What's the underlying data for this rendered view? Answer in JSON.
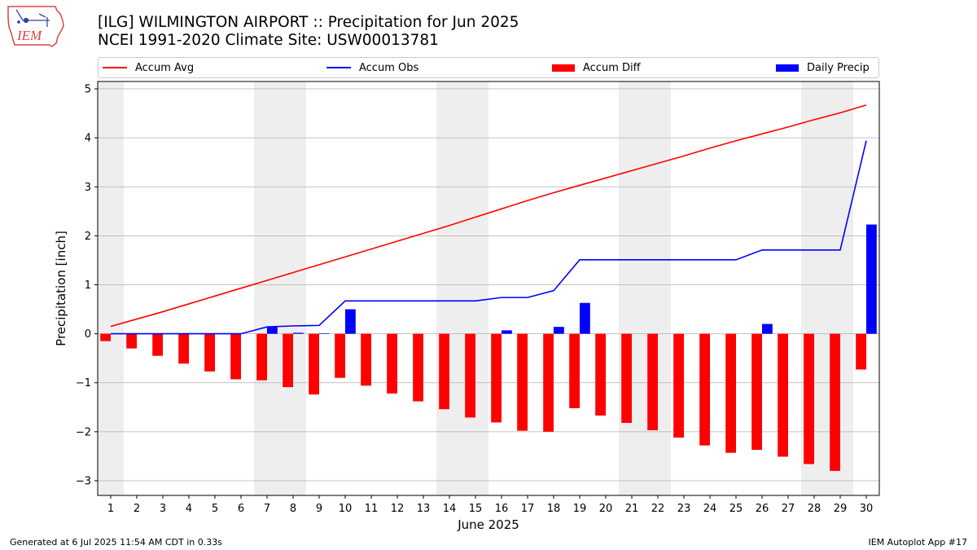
{
  "header": {
    "title_line1": "[ILG] WILMINGTON AIRPORT :: Precipitation for Jun 2025",
    "title_line2": "NCEI 1991-2020 Climate Site: USW00013781"
  },
  "logo": {
    "text": "IEM"
  },
  "footer": {
    "generated": "Generated at 6 Jul 2025 11:54 AM CDT in 0.33s",
    "app": "IEM Autoplot App #17"
  },
  "colors": {
    "accum_avg": "#ff0000",
    "accum_obs": "#0000ff",
    "accum_diff": "#ff0000",
    "daily_precip": "#0000ff",
    "weekend_shade": "#eeeeee",
    "grid": "#b0b0b0"
  },
  "chart_data": {
    "type": "bar",
    "xlabel": "June 2025",
    "ylabel": "Precipitation [inch]",
    "xlim": [
      0.5,
      30.5
    ],
    "ylim": [
      -3.3,
      5.15
    ],
    "yticks": [
      -3,
      -2,
      -1,
      0,
      1,
      2,
      3,
      4,
      5
    ],
    "ytick_labels": [
      "−3",
      "−2",
      "−1",
      "0",
      "1",
      "2",
      "3",
      "4",
      "5"
    ],
    "grid": "horizontal",
    "legend_position": "top",
    "weekend_days": [
      1,
      7,
      8,
      14,
      15,
      21,
      22,
      28,
      29
    ],
    "days": [
      1,
      2,
      3,
      4,
      5,
      6,
      7,
      8,
      9,
      10,
      11,
      12,
      13,
      14,
      15,
      16,
      17,
      18,
      19,
      20,
      21,
      22,
      23,
      24,
      25,
      26,
      27,
      28,
      29,
      30
    ],
    "series": [
      {
        "name": "Accum Avg",
        "kind": "line",
        "values": [
          0.15,
          0.3,
          0.45,
          0.61,
          0.77,
          0.93,
          1.09,
          1.25,
          1.41,
          1.57,
          1.73,
          1.89,
          2.05,
          2.21,
          2.38,
          2.55,
          2.72,
          2.88,
          3.03,
          3.18,
          3.33,
          3.48,
          3.63,
          3.79,
          3.94,
          4.08,
          4.22,
          4.37,
          4.51,
          4.67
        ]
      },
      {
        "name": "Accum Obs",
        "kind": "line",
        "values": [
          0.0,
          0.0,
          0.0,
          0.0,
          0.0,
          0.0,
          0.14,
          0.16,
          0.17,
          0.67,
          0.67,
          0.67,
          0.67,
          0.67,
          0.67,
          0.74,
          0.74,
          0.88,
          1.51,
          1.51,
          1.51,
          1.51,
          1.51,
          1.51,
          1.51,
          1.71,
          1.71,
          1.71,
          1.71,
          3.94
        ]
      },
      {
        "name": "Accum Diff",
        "kind": "bar",
        "values": [
          -0.15,
          -0.3,
          -0.45,
          -0.61,
          -0.77,
          -0.93,
          -0.95,
          -1.09,
          -1.24,
          -0.9,
          -1.06,
          -1.22,
          -1.38,
          -1.54,
          -1.71,
          -1.81,
          -1.98,
          -2.0,
          -1.52,
          -1.67,
          -1.82,
          -1.97,
          -2.12,
          -2.28,
          -2.43,
          -2.37,
          -2.51,
          -2.66,
          -2.8,
          -0.73
        ]
      },
      {
        "name": "Daily Precip",
        "kind": "bar",
        "values": [
          0.0,
          0.0,
          0.0,
          0.0,
          0.0,
          0.0,
          0.14,
          0.02,
          0.01,
          0.5,
          0.0,
          0.0,
          0.0,
          0.0,
          0.0,
          0.07,
          0.0,
          0.14,
          0.63,
          0.0,
          0.0,
          0.0,
          0.0,
          0.0,
          0.0,
          0.2,
          0.0,
          0.0,
          0.0,
          2.23
        ]
      }
    ]
  }
}
